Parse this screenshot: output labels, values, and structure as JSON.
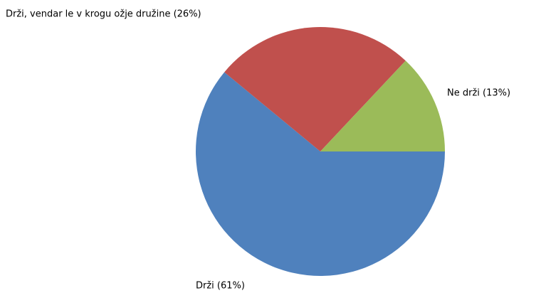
{
  "chart_data": {
    "type": "pie",
    "values": [
      61,
      26,
      13
    ],
    "value_labels": [
      "Drži (61%)",
      "Drži, vendar le v krogu ožje družine (26%)",
      "Ne drži (13%)"
    ],
    "colors": [
      "#4f81bd",
      "#c0504d",
      "#9bbb59"
    ]
  }
}
